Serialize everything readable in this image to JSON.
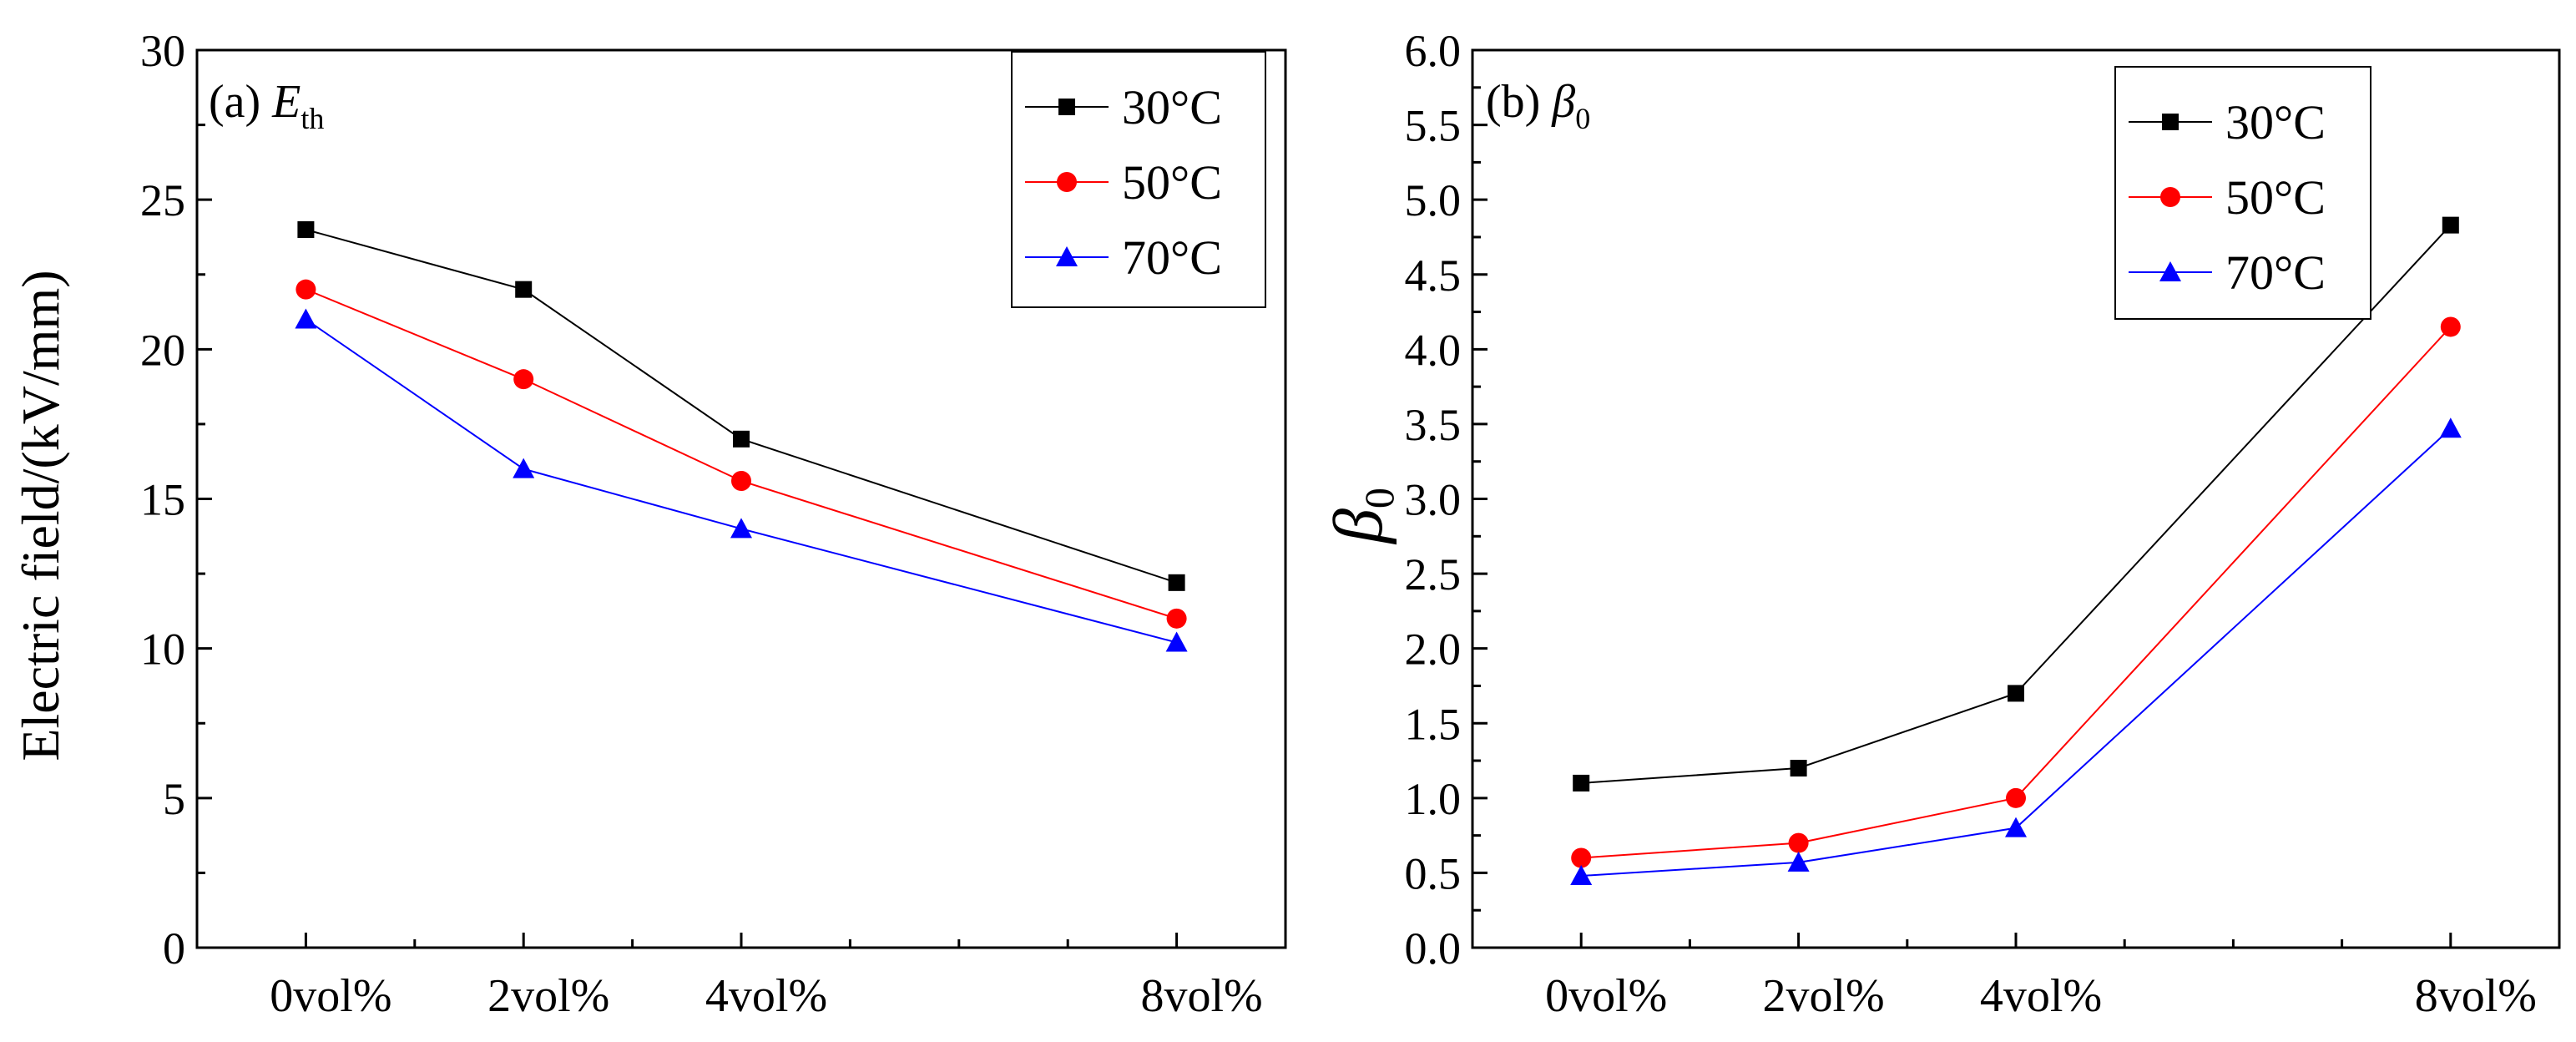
{
  "chart_data": [
    {
      "type": "line",
      "panel_label": "(a)",
      "panel_symbol": "E",
      "panel_subscript": "th",
      "ylabel": "Electric field/(kV/mm)",
      "xlabel": "",
      "categories": [
        "0vol%",
        "2vol%",
        "4vol%",
        "8vol%"
      ],
      "x": [
        0,
        2,
        4,
        8
      ],
      "xlim": [
        -1,
        9
      ],
      "xminor": [
        1,
        3,
        5,
        6,
        7
      ],
      "ylim": [
        0,
        30
      ],
      "yticks": [
        0,
        5,
        10,
        15,
        20,
        25,
        30
      ],
      "ytick_labels": [
        "0",
        "5",
        "10",
        "15",
        "20",
        "25",
        "30"
      ],
      "grid": false,
      "legend_position": "top-right",
      "series": [
        {
          "name": "30°C",
          "color": "#000000",
          "marker": "square",
          "values": [
            24.0,
            22.0,
            17.0,
            12.2
          ]
        },
        {
          "name": "50°C",
          "color": "#ff0000",
          "marker": "circle",
          "values": [
            22.0,
            19.0,
            15.6,
            11.0
          ]
        },
        {
          "name": "70°C",
          "color": "#0000ff",
          "marker": "triangle",
          "values": [
            21.0,
            16.0,
            14.0,
            10.2
          ]
        }
      ]
    },
    {
      "type": "line",
      "panel_label": "(b)",
      "panel_symbol": "β",
      "panel_subscript": "0",
      "ylabel": "β",
      "ylabel_subscript": "0",
      "xlabel": "",
      "categories": [
        "0vol%",
        "2vol%",
        "4vol%",
        "8vol%"
      ],
      "x": [
        0,
        2,
        4,
        8
      ],
      "xlim": [
        -1,
        9
      ],
      "xminor": [
        1,
        3,
        5,
        6,
        7
      ],
      "ylim": [
        0,
        6
      ],
      "yticks": [
        0,
        0.5,
        1,
        1.5,
        2,
        2.5,
        3,
        3.5,
        4,
        4.5,
        5,
        5.5,
        6
      ],
      "ytick_labels": [
        "0.0",
        "0.5",
        "1.0",
        "1.5",
        "2.0",
        "2.5",
        "3.0",
        "3.5",
        "4.0",
        "4.5",
        "5.0",
        "5.5",
        "6.0"
      ],
      "grid": false,
      "legend_position": "top-right",
      "series": [
        {
          "name": "30°C",
          "color": "#000000",
          "marker": "square",
          "values": [
            1.1,
            1.2,
            1.7,
            4.83
          ]
        },
        {
          "name": "50°C",
          "color": "#ff0000",
          "marker": "circle",
          "values": [
            0.6,
            0.7,
            1.0,
            4.15
          ]
        },
        {
          "name": "70°C",
          "color": "#0000ff",
          "marker": "triangle",
          "values": [
            0.48,
            0.57,
            0.8,
            3.47
          ]
        }
      ]
    }
  ]
}
